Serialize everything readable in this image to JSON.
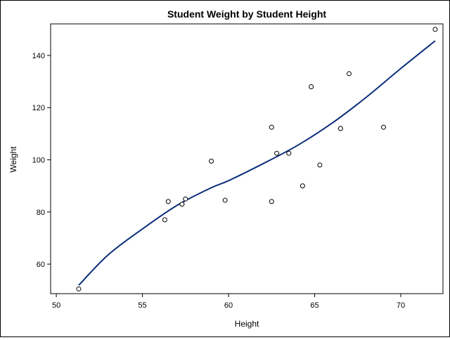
{
  "chart_data": {
    "type": "scatter",
    "title": "Student Weight by Student Height",
    "xlabel": "Height",
    "ylabel": "Weight",
    "xlim": [
      49.67,
      72.45
    ],
    "ylim": [
      48.7,
      152.1
    ],
    "xticks": [
      50,
      55,
      60,
      65,
      70
    ],
    "yticks": [
      60,
      80,
      100,
      120,
      140
    ],
    "grid": false,
    "points": [
      {
        "x": 69.0,
        "y": 112.5
      },
      {
        "x": 56.5,
        "y": 84.0
      },
      {
        "x": 65.3,
        "y": 98.0
      },
      {
        "x": 62.8,
        "y": 102.5
      },
      {
        "x": 63.5,
        "y": 102.5
      },
      {
        "x": 57.3,
        "y": 83.0
      },
      {
        "x": 59.8,
        "y": 84.5
      },
      {
        "x": 62.5,
        "y": 112.5
      },
      {
        "x": 62.5,
        "y": 84.0
      },
      {
        "x": 59.0,
        "y": 99.5
      },
      {
        "x": 51.3,
        "y": 50.5
      },
      {
        "x": 64.3,
        "y": 90.0
      },
      {
        "x": 56.3,
        "y": 77.0
      },
      {
        "x": 66.5,
        "y": 112.0
      },
      {
        "x": 72.0,
        "y": 150.0
      },
      {
        "x": 64.8,
        "y": 128.0
      },
      {
        "x": 67.0,
        "y": 133.0
      },
      {
        "x": 57.5,
        "y": 85.0
      },
      {
        "x": 66.5,
        "y": 112.0
      }
    ],
    "fit_curve": {
      "x": [
        51.3,
        53,
        55,
        57,
        59,
        60,
        62,
        64,
        66,
        68,
        70,
        72
      ],
      "y": [
        51.9,
        63.5,
        73.5,
        82.5,
        89.3,
        92.0,
        98.5,
        105.5,
        114.0,
        124.0,
        135.0,
        145.6
      ]
    },
    "colors": {
      "fit": "#0b2e7a",
      "points": "#000000"
    }
  }
}
